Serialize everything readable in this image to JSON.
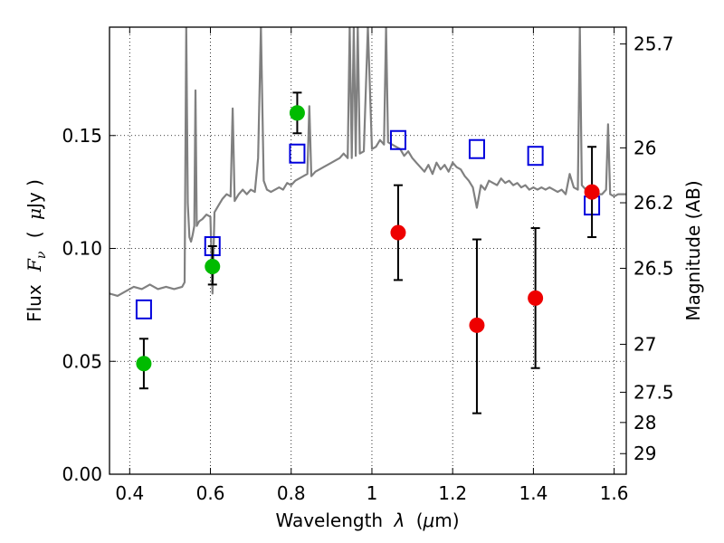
{
  "chart_data": {
    "type": "scatter",
    "xlabel_prefix": "Wavelength",
    "xlabel_symbol": "λ",
    "xlabel_unit_open": "(",
    "xlabel_unit_mu": "μ",
    "xlabel_unit_rest": "m)",
    "ylabel_prefix": "Flux",
    "ylabel_symbol": "F",
    "ylabel_sub": "ν",
    "ylabel_unit_open": "(",
    "ylabel_unit_mu": "μ",
    "ylabel_unit_rest": "Jy )",
    "y2label": "Magnitude (AB)",
    "xlim": [
      0.35,
      1.63
    ],
    "ylim": [
      0.0,
      0.198
    ],
    "x_ticks": [
      0.4,
      0.6,
      0.8,
      1.0,
      1.2,
      1.4,
      1.6
    ],
    "x_tick_labels": [
      "0.4",
      "0.6",
      "0.8",
      "1",
      "1.2",
      "1.4",
      "1.6"
    ],
    "y_ticks": [
      0.0,
      0.05,
      0.1,
      0.15
    ],
    "y_tick_labels": [
      "0.00",
      "0.05",
      "0.10",
      "0.15"
    ],
    "mag_ticks": [
      "25.7",
      "26",
      "26.2",
      "26.5",
      "27",
      "27.5",
      "28",
      "29"
    ],
    "grid": true,
    "colors": {
      "model": "#808080",
      "detections_green": "#00bb00",
      "detections_red": "#ee0000",
      "model_photometry": "#0000dd",
      "errorbar": "#000000"
    },
    "series": [
      {
        "kind": "line",
        "color": "#808080",
        "points": [
          [
            0.35,
            0.08
          ],
          [
            0.37,
            0.079
          ],
          [
            0.39,
            0.081
          ],
          [
            0.41,
            0.083
          ],
          [
            0.43,
            0.082
          ],
          [
            0.45,
            0.084
          ],
          [
            0.47,
            0.082
          ],
          [
            0.49,
            0.083
          ],
          [
            0.51,
            0.082
          ],
          [
            0.53,
            0.083
          ],
          [
            0.536,
            0.085
          ],
          [
            0.54,
            0.198
          ],
          [
            0.544,
            0.12
          ],
          [
            0.548,
            0.105
          ],
          [
            0.552,
            0.103
          ],
          [
            0.556,
            0.106
          ],
          [
            0.56,
            0.11
          ],
          [
            0.563,
            0.17
          ],
          [
            0.566,
            0.11
          ],
          [
            0.572,
            0.112
          ],
          [
            0.58,
            0.113
          ],
          [
            0.59,
            0.115
          ],
          [
            0.6,
            0.114
          ],
          [
            0.605,
            0.08
          ],
          [
            0.61,
            0.116
          ],
          [
            0.62,
            0.119
          ],
          [
            0.63,
            0.122
          ],
          [
            0.64,
            0.124
          ],
          [
            0.65,
            0.123
          ],
          [
            0.655,
            0.162
          ],
          [
            0.66,
            0.121
          ],
          [
            0.67,
            0.124
          ],
          [
            0.68,
            0.126
          ],
          [
            0.69,
            0.124
          ],
          [
            0.7,
            0.126
          ],
          [
            0.71,
            0.125
          ],
          [
            0.718,
            0.14
          ],
          [
            0.725,
            0.198
          ],
          [
            0.732,
            0.13
          ],
          [
            0.74,
            0.126
          ],
          [
            0.75,
            0.125
          ],
          [
            0.76,
            0.126
          ],
          [
            0.77,
            0.127
          ],
          [
            0.78,
            0.126
          ],
          [
            0.79,
            0.129
          ],
          [
            0.8,
            0.128
          ],
          [
            0.81,
            0.13
          ],
          [
            0.82,
            0.131
          ],
          [
            0.83,
            0.132
          ],
          [
            0.84,
            0.133
          ],
          [
            0.845,
            0.163
          ],
          [
            0.85,
            0.132
          ],
          [
            0.86,
            0.134
          ],
          [
            0.87,
            0.135
          ],
          [
            0.88,
            0.136
          ],
          [
            0.89,
            0.137
          ],
          [
            0.9,
            0.138
          ],
          [
            0.91,
            0.139
          ],
          [
            0.92,
            0.14
          ],
          [
            0.93,
            0.142
          ],
          [
            0.94,
            0.14
          ],
          [
            0.945,
            0.198
          ],
          [
            0.95,
            0.14
          ],
          [
            0.955,
            0.198
          ],
          [
            0.96,
            0.141
          ],
          [
            0.965,
            0.198
          ],
          [
            0.97,
            0.142
          ],
          [
            0.98,
            0.143
          ],
          [
            0.99,
            0.198
          ],
          [
            1.0,
            0.144
          ],
          [
            1.01,
            0.145
          ],
          [
            1.02,
            0.148
          ],
          [
            1.03,
            0.146
          ],
          [
            1.035,
            0.198
          ],
          [
            1.04,
            0.147
          ],
          [
            1.05,
            0.146
          ],
          [
            1.06,
            0.145
          ],
          [
            1.07,
            0.144
          ],
          [
            1.08,
            0.141
          ],
          [
            1.09,
            0.143
          ],
          [
            1.1,
            0.14
          ],
          [
            1.11,
            0.138
          ],
          [
            1.12,
            0.136
          ],
          [
            1.13,
            0.134
          ],
          [
            1.14,
            0.137
          ],
          [
            1.15,
            0.133
          ],
          [
            1.16,
            0.138
          ],
          [
            1.17,
            0.135
          ],
          [
            1.18,
            0.137
          ],
          [
            1.19,
            0.134
          ],
          [
            1.2,
            0.138
          ],
          [
            1.21,
            0.136
          ],
          [
            1.22,
            0.135
          ],
          [
            1.23,
            0.132
          ],
          [
            1.24,
            0.13
          ],
          [
            1.25,
            0.127
          ],
          [
            1.26,
            0.118
          ],
          [
            1.27,
            0.128
          ],
          [
            1.28,
            0.126
          ],
          [
            1.29,
            0.13
          ],
          [
            1.3,
            0.129
          ],
          [
            1.31,
            0.128
          ],
          [
            1.32,
            0.131
          ],
          [
            1.33,
            0.129
          ],
          [
            1.34,
            0.13
          ],
          [
            1.35,
            0.128
          ],
          [
            1.36,
            0.129
          ],
          [
            1.37,
            0.127
          ],
          [
            1.38,
            0.128
          ],
          [
            1.39,
            0.126
          ],
          [
            1.4,
            0.127
          ],
          [
            1.41,
            0.126
          ],
          [
            1.42,
            0.127
          ],
          [
            1.43,
            0.126
          ],
          [
            1.44,
            0.127
          ],
          [
            1.45,
            0.126
          ],
          [
            1.46,
            0.125
          ],
          [
            1.47,
            0.126
          ],
          [
            1.48,
            0.124
          ],
          [
            1.49,
            0.133
          ],
          [
            1.5,
            0.127
          ],
          [
            1.51,
            0.126
          ],
          [
            1.515,
            0.198
          ],
          [
            1.52,
            0.128
          ],
          [
            1.53,
            0.126
          ],
          [
            1.54,
            0.125
          ],
          [
            1.55,
            0.126
          ],
          [
            1.56,
            0.124
          ],
          [
            1.57,
            0.124
          ],
          [
            1.58,
            0.126
          ],
          [
            1.585,
            0.155
          ],
          [
            1.59,
            0.124
          ],
          [
            1.6,
            0.123
          ],
          [
            1.61,
            0.124
          ],
          [
            1.62,
            0.124
          ],
          [
            1.63,
            0.124
          ]
        ]
      },
      {
        "kind": "points",
        "color": "#00bb00",
        "marker": "circle",
        "x": [
          0.435,
          0.605,
          0.815
        ],
        "y": [
          0.049,
          0.092,
          0.16
        ],
        "yerr_low": [
          0.038,
          0.084,
          0.151
        ],
        "yerr_high": [
          0.06,
          0.101,
          0.169
        ]
      },
      {
        "kind": "points",
        "color": "#ee0000",
        "marker": "circle",
        "x": [
          1.065,
          1.26,
          1.405,
          1.545
        ],
        "y": [
          0.107,
          0.066,
          0.078,
          0.125
        ],
        "yerr_low": [
          0.086,
          0.027,
          0.047,
          0.105
        ],
        "yerr_high": [
          0.128,
          0.104,
          0.109,
          0.145
        ]
      },
      {
        "kind": "points",
        "color": "#0000dd",
        "marker": "open-square",
        "x": [
          0.435,
          0.605,
          0.815,
          1.065,
          1.26,
          1.405,
          1.545
        ],
        "y": [
          0.073,
          0.101,
          0.142,
          0.148,
          0.144,
          0.141,
          0.119
        ]
      }
    ]
  }
}
